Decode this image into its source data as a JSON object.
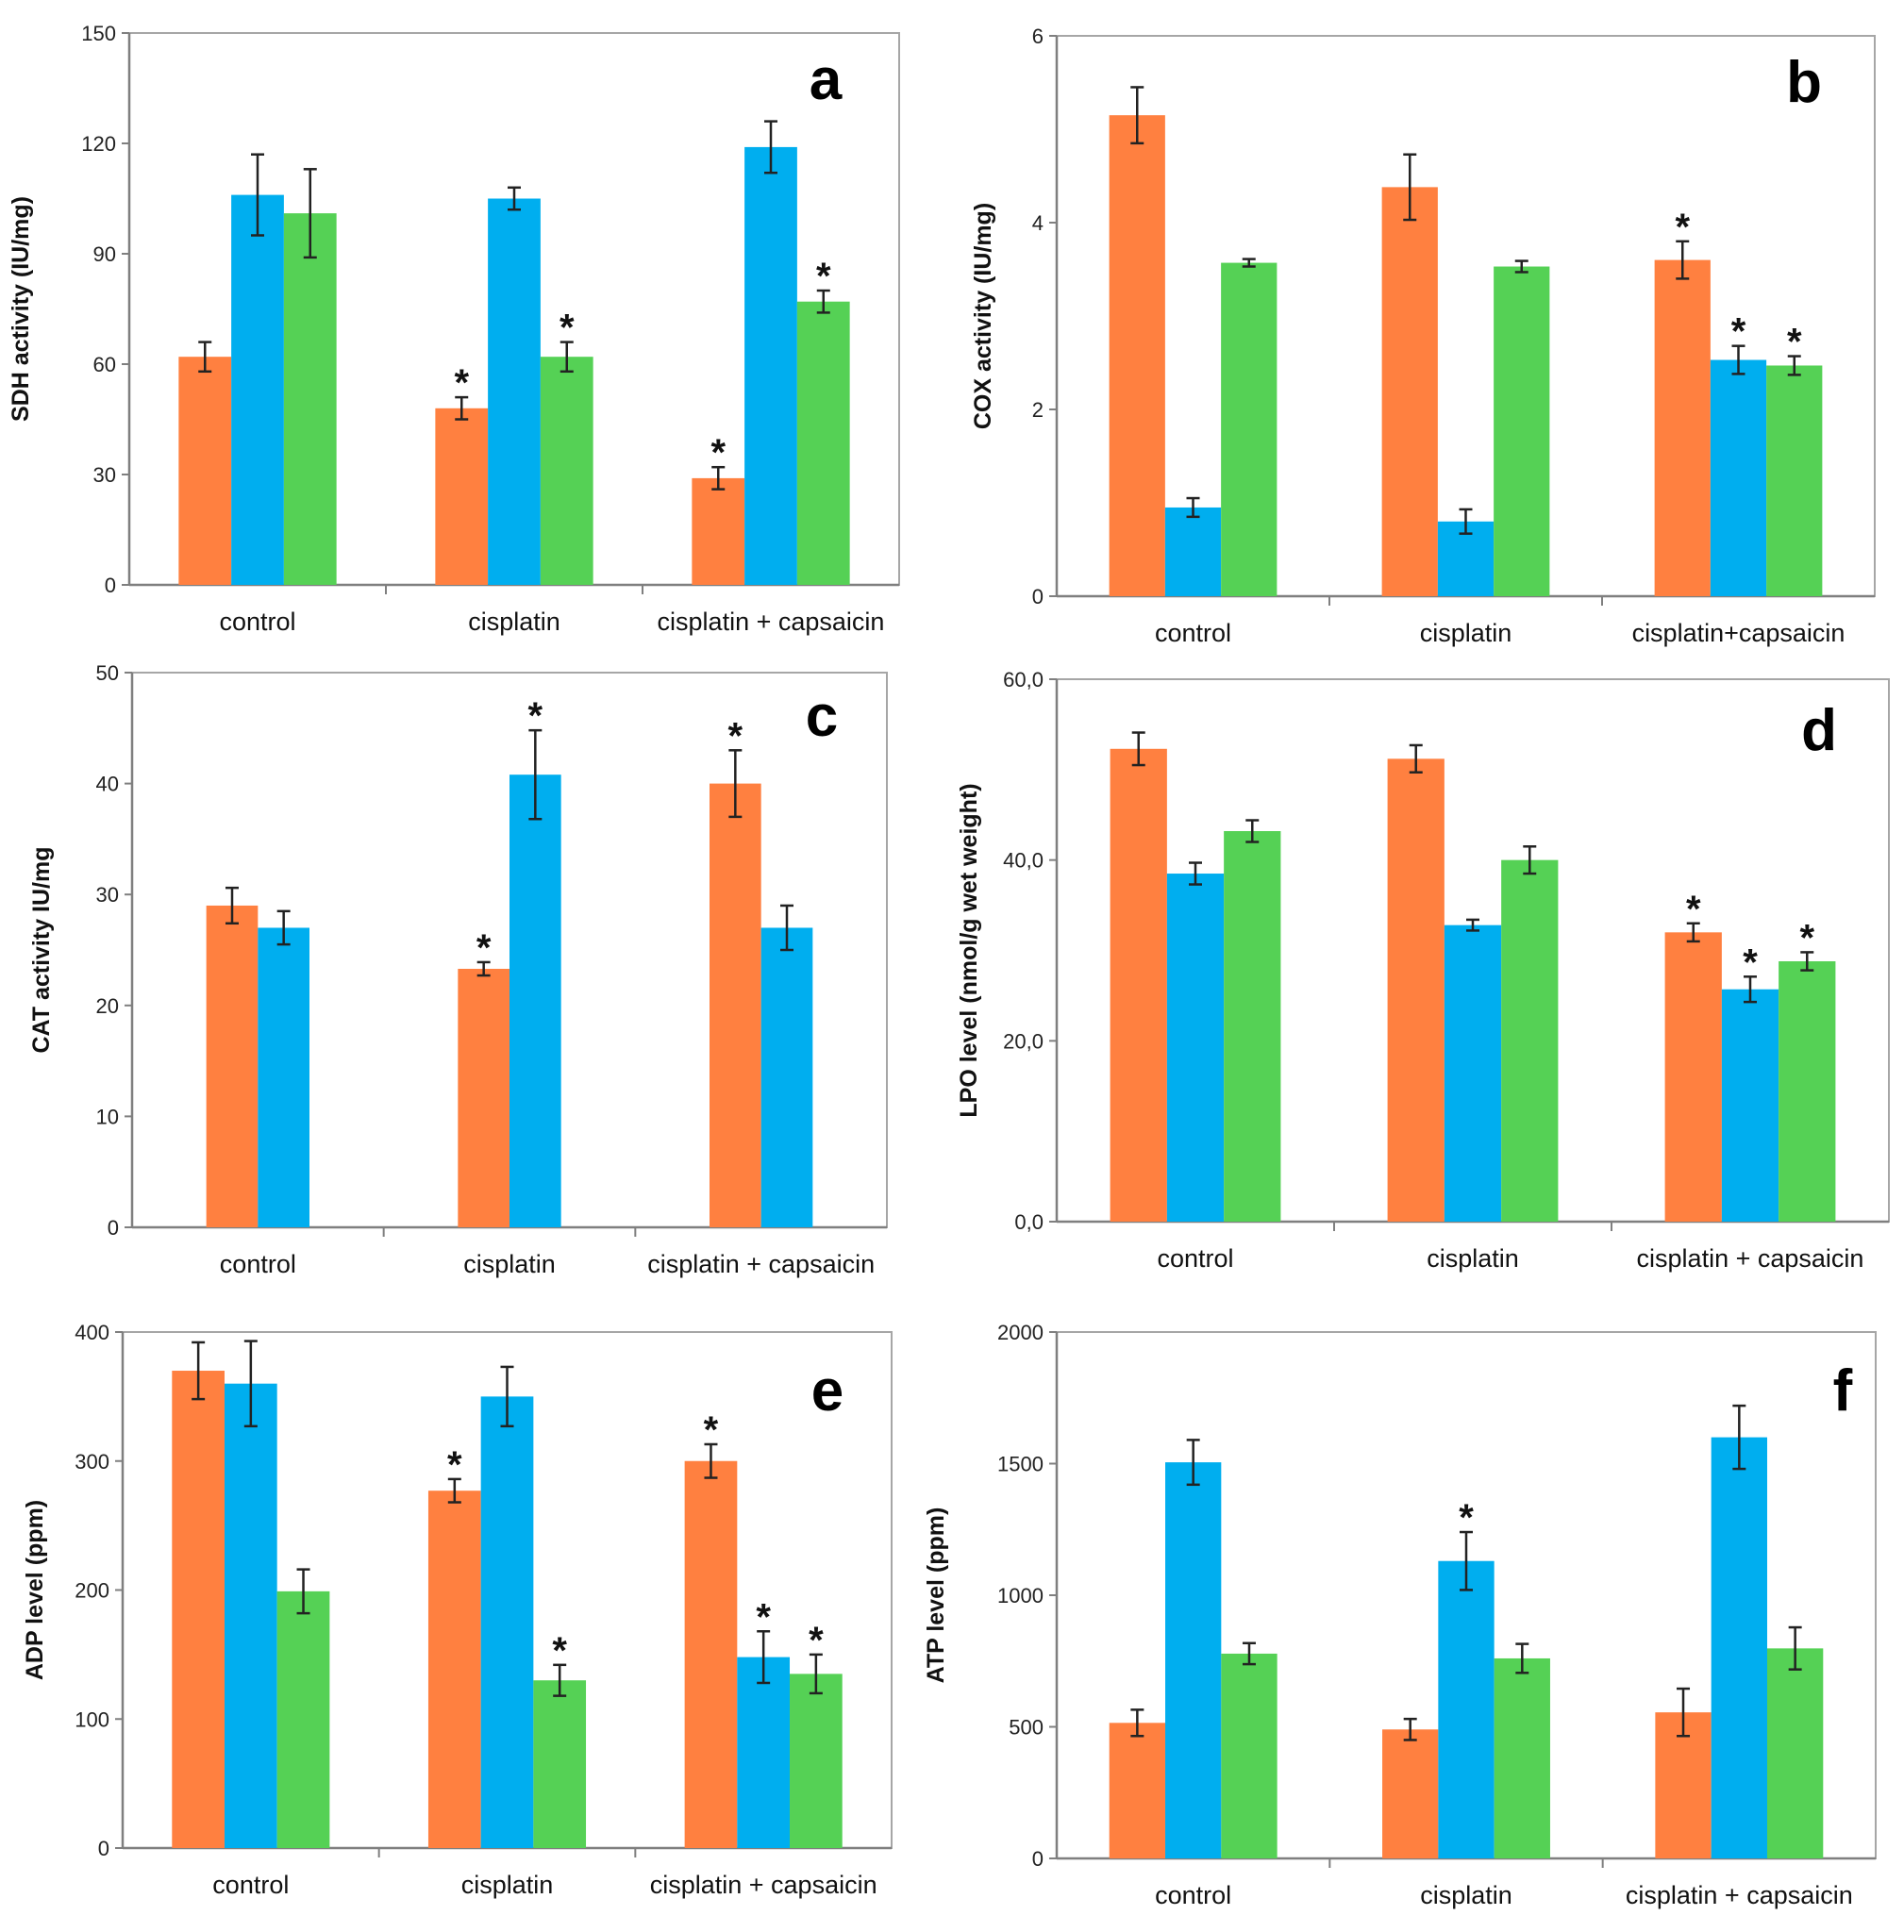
{
  "colors": {
    "series": [
      "#FF8040",
      "#00AEEF",
      "#55D155"
    ],
    "axis": "#7F7F7F",
    "frame": "#A6A6A6",
    "error": "#222222"
  },
  "chart_data": [
    {
      "type": "bar",
      "panel": "a",
      "ylabel": "SDH activity (IU/mg)",
      "categories": [
        "control",
        "cisplatin",
        "cisplatin + capsaicin"
      ],
      "ylim": [
        0,
        150
      ],
      "yticks": [
        "0",
        "30",
        "60",
        "90",
        "120",
        "150"
      ],
      "series": [
        {
          "values": [
            62,
            48,
            29
          ],
          "errors": [
            4,
            3,
            3
          ],
          "stars": [
            false,
            true,
            true
          ]
        },
        {
          "values": [
            106,
            105,
            119
          ],
          "errors": [
            11,
            3,
            7
          ],
          "stars": [
            false,
            false,
            false
          ]
        },
        {
          "values": [
            101,
            62,
            77
          ],
          "errors": [
            12,
            4,
            3
          ],
          "stars": [
            false,
            true,
            true
          ]
        }
      ]
    },
    {
      "type": "bar",
      "panel": "b",
      "ylabel": "COX activity (IU/mg)",
      "categories": [
        "control",
        "cisplatin",
        "cisplatin+capsaicin"
      ],
      "ylim": [
        0,
        6
      ],
      "yticks": [
        "0",
        "2",
        "4",
        "6"
      ],
      "series": [
        {
          "values": [
            5.15,
            4.38,
            3.6
          ],
          "errors": [
            0.3,
            0.35,
            0.2
          ],
          "stars": [
            false,
            false,
            true
          ]
        },
        {
          "values": [
            0.95,
            0.8,
            2.53
          ],
          "errors": [
            0.1,
            0.13,
            0.15
          ],
          "stars": [
            false,
            false,
            true
          ]
        },
        {
          "values": [
            3.57,
            3.53,
            2.47
          ],
          "errors": [
            0.04,
            0.06,
            0.1
          ],
          "stars": [
            false,
            false,
            true
          ]
        }
      ]
    },
    {
      "type": "bar",
      "panel": "c",
      "ylabel": "CAT activity IU/mg",
      "categories": [
        "control",
        "cisplatin",
        "cisplatin + capsaicin"
      ],
      "ylim": [
        0,
        50
      ],
      "yticks": [
        "0",
        "10",
        "20",
        "30",
        "40",
        "50"
      ],
      "series": [
        {
          "values": [
            29,
            23.3,
            40
          ],
          "errors": [
            1.6,
            0.6,
            3
          ],
          "stars": [
            false,
            true,
            true
          ]
        },
        {
          "values": [
            27,
            40.8,
            27
          ],
          "errors": [
            1.5,
            4,
            2
          ],
          "stars": [
            false,
            true,
            false
          ]
        }
      ]
    },
    {
      "type": "bar",
      "panel": "d",
      "ylabel": "LPO level (nmol/g wet weight)",
      "categories": [
        "control",
        "cisplatin",
        "cisplatin + capsaicin"
      ],
      "ylim": [
        0,
        60
      ],
      "yticks": [
        "0,0",
        "20,0",
        "40,0",
        "60,0"
      ],
      "series": [
        {
          "values": [
            52.3,
            51.2,
            32
          ],
          "errors": [
            1.8,
            1.5,
            1
          ],
          "stars": [
            false,
            false,
            true
          ]
        },
        {
          "values": [
            38.5,
            32.8,
            25.7
          ],
          "errors": [
            1.2,
            0.6,
            1.4
          ],
          "stars": [
            false,
            false,
            true
          ]
        },
        {
          "values": [
            43.2,
            40,
            28.8
          ],
          "errors": [
            1.2,
            1.5,
            1
          ],
          "stars": [
            false,
            false,
            true
          ]
        }
      ]
    },
    {
      "type": "bar",
      "panel": "e",
      "ylabel": "ADP level  (ppm)",
      "categories": [
        "control",
        "cisplatin",
        "cisplatin + capsaicin"
      ],
      "ylim": [
        0,
        400
      ],
      "yticks": [
        "0",
        "100",
        "200",
        "300",
        "400"
      ],
      "series": [
        {
          "values": [
            370,
            277,
            300
          ],
          "errors": [
            22,
            9,
            13
          ],
          "stars": [
            false,
            true,
            true
          ]
        },
        {
          "values": [
            360,
            350,
            148
          ],
          "errors": [
            33,
            23,
            20
          ],
          "stars": [
            false,
            false,
            true
          ]
        },
        {
          "values": [
            199,
            130,
            135
          ],
          "errors": [
            17,
            12,
            15
          ],
          "stars": [
            false,
            true,
            true
          ]
        }
      ]
    },
    {
      "type": "bar",
      "panel": "f",
      "ylabel": "ATP level (ppm)",
      "categories": [
        "control",
        "cisplatin",
        "cisplatin + capsaicin"
      ],
      "ylim": [
        0,
        2000
      ],
      "yticks": [
        "0",
        "500",
        "1000",
        "1500",
        "2000"
      ],
      "series": [
        {
          "values": [
            515,
            490,
            555
          ],
          "errors": [
            50,
            40,
            90
          ],
          "stars": [
            false,
            false,
            false
          ]
        },
        {
          "values": [
            1505,
            1130,
            1600
          ],
          "errors": [
            85,
            110,
            120
          ],
          "stars": [
            false,
            true,
            false
          ]
        },
        {
          "values": [
            778,
            760,
            798
          ],
          "errors": [
            40,
            55,
            80
          ],
          "stars": [
            false,
            false,
            false
          ]
        }
      ]
    }
  ]
}
